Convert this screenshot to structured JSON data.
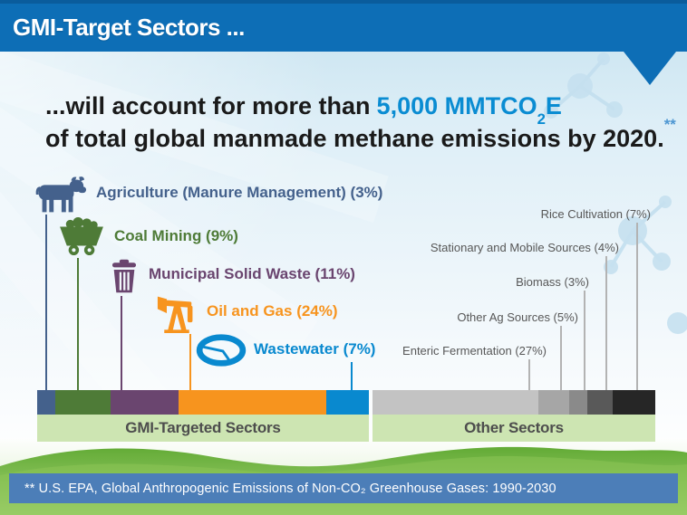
{
  "header": {
    "title": "GMI-Target Sectors ..."
  },
  "headline": {
    "lead": "...will account for more than",
    "highlight_pre": "5,000 MMTCO",
    "highlight_sub": "2",
    "highlight_post": "E",
    "line2": "of total global manmade methane emissions by 2020.",
    "footnote_marker": "**"
  },
  "colors": {
    "header_bg": "#0d6eb6",
    "highlight_blue": "#0a8cd2",
    "footnote_blue": "#4d96d2",
    "band_green": "#cde5b2",
    "footer_bg": "#4c7eb8",
    "gray_line": "#b3b3b3",
    "gray_label": "#575757"
  },
  "chart_data": {
    "type": "bar",
    "subtype": "stacked-horizontal-percent",
    "title": "Share of total global manmade methane emissions by 2020",
    "total_value": "5,000 MMTCO2E",
    "groups": [
      {
        "label": "GMI-Targeted Sectors",
        "total_percent": 54,
        "segments": [
          {
            "name": "Agriculture (Manure Management)",
            "percent": 3,
            "label": "Agriculture (Manure Management) (3%)",
            "color": "#44618c",
            "icon": "cow-icon"
          },
          {
            "name": "Coal Mining",
            "percent": 9,
            "label": "Coal Mining (9%)",
            "color": "#4e7b37",
            "icon": "mine-cart-icon"
          },
          {
            "name": "Municipal Solid Waste",
            "percent": 11,
            "label": "Municipal Solid Waste (11%)",
            "color": "#6a456f",
            "icon": "trash-can-icon"
          },
          {
            "name": "Oil and Gas",
            "percent": 24,
            "label": "Oil and Gas (24%)",
            "color": "#f7941e",
            "icon": "pumpjack-icon"
          },
          {
            "name": "Wastewater",
            "percent": 7,
            "label": "Wastewater (7%)",
            "color": "#0989cf",
            "icon": "clarifier-icon"
          }
        ]
      },
      {
        "label": "Other Sectors",
        "total_percent": 46,
        "segments": [
          {
            "name": "Enteric Fermentation",
            "percent": 27,
            "label": "Enteric Fermentation (27%)",
            "color": "#c3c3c3"
          },
          {
            "name": "Other Ag Sources",
            "percent": 5,
            "label": "Other Ag Sources (5%)",
            "color": "#a6a6a6"
          },
          {
            "name": "Biomass",
            "percent": 3,
            "label": "Biomass (3%)",
            "color": "#8a8a8a"
          },
          {
            "name": "Stationary and Mobile Sources",
            "percent": 4,
            "label": "Stationary and Mobile Sources (4%)",
            "color": "#595959"
          },
          {
            "name": "Rice Cultivation",
            "percent": 7,
            "label": "Rice Cultivation (7%)",
            "color": "#262626"
          }
        ]
      }
    ]
  },
  "footer": {
    "citation": "** U.S. EPA, Global Anthropogenic Emissions of Non-CO₂ Greenhouse Gases: 1990-2030"
  }
}
